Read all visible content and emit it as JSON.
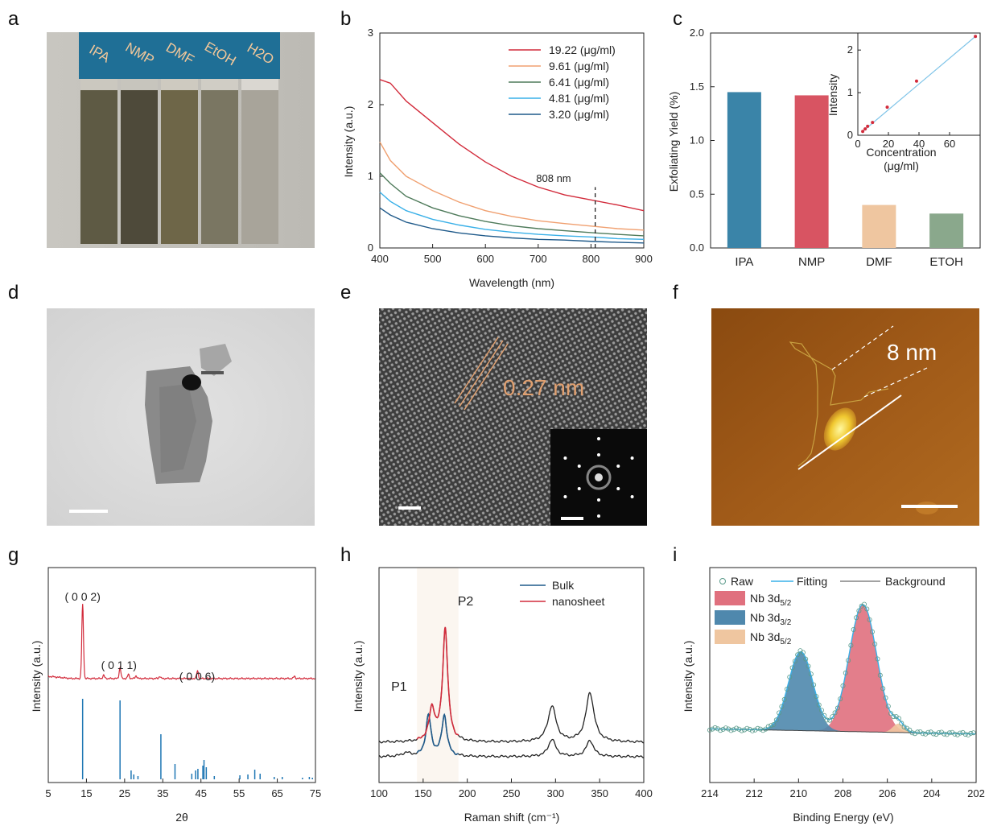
{
  "panels": {
    "a": "a",
    "b": "b",
    "c": "c",
    "d": "d",
    "e": "e",
    "f": "f",
    "g": "g",
    "h": "h",
    "i": "i"
  },
  "photo_a": {
    "vial_labels": [
      "IPA",
      "NMP",
      "DMF",
      "EtOH",
      "H2O"
    ],
    "vial_colors": [
      "#5e5a44",
      "#4e4a3a",
      "#6e6648",
      "#7a7662",
      "#a8a49a"
    ],
    "label_band_color": "#1f6f96"
  },
  "image_e": {
    "spacing_label": "0.27 nm"
  },
  "image_f": {
    "height_label": "8 nm"
  },
  "chart_data": [
    {
      "panel": "b",
      "type": "line",
      "xlabel": "Wavelength (nm)",
      "ylabel": "Intensity (a.u.)",
      "xlim": [
        400,
        900
      ],
      "ylim": [
        0,
        3
      ],
      "xticks": [
        400,
        500,
        600,
        700,
        800,
        900
      ],
      "yticks": [
        0,
        1,
        2,
        3
      ],
      "annotation": "808 nm",
      "annotation_x": 808,
      "legend_position": "top-right",
      "x": [
        400,
        420,
        450,
        500,
        550,
        600,
        650,
        700,
        750,
        808,
        850,
        900
      ],
      "series": [
        {
          "name": "19.22 (μg/ml)",
          "color": "#d22b3b",
          "values": [
            2.35,
            2.3,
            2.05,
            1.75,
            1.45,
            1.2,
            1.0,
            0.85,
            0.74,
            0.66,
            0.6,
            0.52
          ]
        },
        {
          "name": "9.61 (μg/ml)",
          "color": "#f0a070",
          "values": [
            1.48,
            1.22,
            1.0,
            0.8,
            0.64,
            0.52,
            0.44,
            0.38,
            0.34,
            0.3,
            0.27,
            0.25
          ]
        },
        {
          "name": "6.41 (μg/ml)",
          "color": "#4e7a5a",
          "values": [
            1.05,
            0.9,
            0.72,
            0.56,
            0.45,
            0.37,
            0.31,
            0.27,
            0.24,
            0.21,
            0.19,
            0.17
          ]
        },
        {
          "name": "4.81 (μg/ml)",
          "color": "#39b0e8",
          "values": [
            0.78,
            0.65,
            0.52,
            0.4,
            0.32,
            0.26,
            0.22,
            0.19,
            0.17,
            0.15,
            0.13,
            0.12
          ]
        },
        {
          "name": "3.20 (μg/ml)",
          "color": "#1f5a8a",
          "values": [
            0.56,
            0.46,
            0.36,
            0.27,
            0.21,
            0.17,
            0.14,
            0.12,
            0.11,
            0.09,
            0.08,
            0.07
          ]
        }
      ]
    },
    {
      "panel": "c",
      "type": "bar",
      "ylabel": "Exfoliating Yield (%)",
      "ylim": [
        0,
        2.0
      ],
      "yticks": [
        "0.0",
        "0.5",
        "1.0",
        "1.5",
        "2.0"
      ],
      "categories": [
        "IPA",
        "NMP",
        "DMF",
        "ETOH"
      ],
      "values": [
        1.45,
        1.42,
        0.4,
        0.32
      ],
      "colors": [
        "#3a84a8",
        "#d85462",
        "#efc6a0",
        "#8aa88c"
      ],
      "inset": {
        "type": "scatter",
        "xlabel": "Concentration",
        "xlabel2": "(μg/ml)",
        "ylabel": "Intensity",
        "xlim": [
          0,
          80
        ],
        "ylim": [
          0,
          2.4
        ],
        "xticks": [
          0,
          20,
          40,
          60
        ],
        "yticks": [
          0,
          1,
          2
        ],
        "x": [
          3.2,
          4.81,
          6.41,
          9.61,
          19.22,
          38.4,
          76.9
        ],
        "y": [
          0.09,
          0.15,
          0.21,
          0.3,
          0.66,
          1.27,
          2.32
        ],
        "line_color": "#7fc4e8",
        "point_color": "#d22b3b"
      }
    },
    {
      "panel": "g",
      "type": "line",
      "xlabel": "2θ",
      "ylabel": "Intensity (a.u.)",
      "xlim": [
        5,
        75
      ],
      "xticks": [
        5,
        15,
        25,
        35,
        45,
        55,
        65,
        75
      ],
      "annotations": [
        {
          "text": "( 0 0 2)",
          "x": 14
        },
        {
          "text": "( 0 1 1)",
          "x": 23.5
        },
        {
          "text": "( 0 0 6)",
          "x": 44
        }
      ],
      "pattern_color": "#d22b3b",
      "pattern_baseline": 0.3,
      "peaks": [
        {
          "x": 14,
          "h": 2.7
        },
        {
          "x": 19.5,
          "h": 0.12
        },
        {
          "x": 23.8,
          "h": 0.4
        },
        {
          "x": 26,
          "h": 0.15
        },
        {
          "x": 28,
          "h": 0.1
        },
        {
          "x": 34.2,
          "h": 0.08
        },
        {
          "x": 44.1,
          "h": 0.28
        },
        {
          "x": 69.5,
          "h": 0.08
        }
      ],
      "reference_color": "#1f77b4",
      "reference_lines": [
        {
          "x": 14,
          "h": 1.0
        },
        {
          "x": 23.8,
          "h": 0.98
        },
        {
          "x": 26.7,
          "h": 0.11
        },
        {
          "x": 27.4,
          "h": 0.06
        },
        {
          "x": 28.5,
          "h": 0.04
        },
        {
          "x": 34.5,
          "h": 0.56
        },
        {
          "x": 38.2,
          "h": 0.19
        },
        {
          "x": 42.6,
          "h": 0.07
        },
        {
          "x": 43.6,
          "h": 0.11
        },
        {
          "x": 44.2,
          "h": 0.13
        },
        {
          "x": 45.5,
          "h": 0.17
        },
        {
          "x": 45.8,
          "h": 0.24
        },
        {
          "x": 46.4,
          "h": 0.15
        },
        {
          "x": 48.5,
          "h": 0.04
        },
        {
          "x": 55.2,
          "h": 0.05
        },
        {
          "x": 57.3,
          "h": 0.06
        },
        {
          "x": 59.1,
          "h": 0.12
        },
        {
          "x": 60.5,
          "h": 0.07
        },
        {
          "x": 64.2,
          "h": 0.03
        },
        {
          "x": 66.3,
          "h": 0.03
        },
        {
          "x": 71.6,
          "h": 0.02
        },
        {
          "x": 73.4,
          "h": 0.03
        },
        {
          "x": 74.2,
          "h": 0.02
        }
      ]
    },
    {
      "panel": "h",
      "type": "line",
      "xlabel": "Raman shift (cm⁻¹)",
      "ylabel": "Intensity (a.u.)",
      "xlim": [
        100,
        400
      ],
      "xticks": [
        100,
        150,
        200,
        250,
        300,
        350,
        400
      ],
      "highlight_range": [
        143,
        190
      ],
      "labels": [
        {
          "text": "P1",
          "x": 130
        },
        {
          "text": "P2",
          "x": 180
        }
      ],
      "legend_position": "top-right",
      "series": [
        {
          "name": "Bulk",
          "color": "#1f5a8a",
          "draw_color": "#222222",
          "offset": 0.0,
          "peaks": [
            {
              "x": 131,
              "h": 0.06,
              "w": 6
            },
            {
              "x": 156,
              "h": 0.7,
              "w": 3.5
            },
            {
              "x": 174,
              "h": 0.7,
              "w": 3.5
            },
            {
              "x": 296,
              "h": 0.3,
              "w": 5
            },
            {
              "x": 339,
              "h": 0.28,
              "w": 5
            }
          ]
        },
        {
          "name": "nanosheet",
          "color": "#d22b3b",
          "draw_color": "#222222",
          "offset": 0.25,
          "peaks": [
            {
              "x": 160,
              "h": 0.55,
              "w": 4
            },
            {
              "x": 175,
              "h": 1.95,
              "w": 3.5
            },
            {
              "x": 296,
              "h": 0.62,
              "w": 5.5
            },
            {
              "x": 339,
              "h": 0.85,
              "w": 5.5
            }
          ]
        }
      ]
    },
    {
      "panel": "i",
      "type": "line",
      "xlabel": "Binding Energy (eV)",
      "ylabel": "Intensity (a.u.)",
      "xlim": [
        214,
        202
      ],
      "xticks": [
        214,
        212,
        210,
        208,
        206,
        204,
        202
      ],
      "legend_position": "top",
      "legend": [
        "Raw",
        "Fitting",
        "Background"
      ],
      "components": [
        {
          "label_main": "Nb 3d",
          "sub": "5/2",
          "color": "#e0707e",
          "x": 207.1,
          "h": 1.0,
          "w": 0.62
        },
        {
          "label_main": "Nb 3d",
          "sub": "3/2",
          "color": "#4f88ad",
          "x": 209.9,
          "h": 0.62,
          "w": 0.55
        },
        {
          "label_main": "Nb 3d",
          "sub": "5/2",
          "color": "#efc6a0",
          "x": 205.5,
          "h": 0.07,
          "w": 0.25
        }
      ]
    }
  ]
}
